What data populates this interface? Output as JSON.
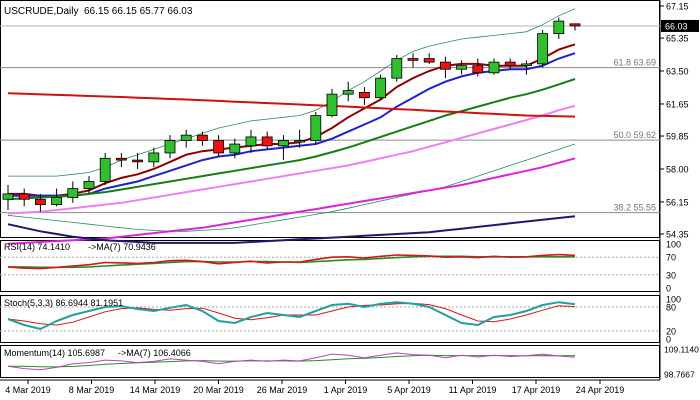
{
  "chart_data": {
    "type": "candlestick",
    "title": "USCRUDE,Daily",
    "ohlc_header": "66.15 66.15 65.77 66.03",
    "last_price": "66.03",
    "price_axis": {
      "ylim": [
        54.35,
        67.15
      ],
      "ticks": [
        "67.15",
        "65.35",
        "63.50",
        "61.65",
        "59.85",
        "58.00",
        "56.15",
        "54.35"
      ]
    },
    "fib_levels": [
      {
        "label": "61.8 63.69",
        "value": 63.69
      },
      {
        "label": "50.0 59.62",
        "value": 59.62
      },
      {
        "label": "38.2 55.55",
        "value": 55.55
      }
    ],
    "resistance_line": 66.03,
    "x_labels": [
      "4 Mar 2019",
      "8 Mar 2019",
      "14 Mar 2019",
      "20 Mar 2019",
      "26 Mar 2019",
      "1 Apr 2019",
      "5 Apr 2019",
      "11 Apr 2019",
      "17 Apr 2019",
      "24 Apr 2019"
    ],
    "candles": [
      [
        56.3,
        57.1,
        55.7,
        56.6
      ],
      [
        56.6,
        56.9,
        55.9,
        56.3
      ],
      [
        56.3,
        56.6,
        55.6,
        56.0
      ],
      [
        56.0,
        56.9,
        55.9,
        56.4
      ],
      [
        56.4,
        57.3,
        56.1,
        56.9
      ],
      [
        56.9,
        57.6,
        56.6,
        57.3
      ],
      [
        57.3,
        58.9,
        57.1,
        58.6
      ],
      [
        58.6,
        58.9,
        58.1,
        58.5
      ],
      [
        58.5,
        58.9,
        58.0,
        58.4
      ],
      [
        58.4,
        59.2,
        58.1,
        58.9
      ],
      [
        58.9,
        59.9,
        58.6,
        59.6
      ],
      [
        59.6,
        60.2,
        59.2,
        59.9
      ],
      [
        59.9,
        60.1,
        59.3,
        59.6
      ],
      [
        59.6,
        59.9,
        58.7,
        58.9
      ],
      [
        58.9,
        59.7,
        58.6,
        59.4
      ],
      [
        59.3,
        60.2,
        58.9,
        59.8
      ],
      [
        59.8,
        60.1,
        59.1,
        59.3
      ],
      [
        59.3,
        59.9,
        58.5,
        59.6
      ],
      [
        59.6,
        60.2,
        59.2,
        59.6
      ],
      [
        59.6,
        61.2,
        59.4,
        61.0
      ],
      [
        61.0,
        62.5,
        60.9,
        62.2
      ],
      [
        62.2,
        62.9,
        61.8,
        62.4
      ],
      [
        62.3,
        62.6,
        61.6,
        62.0
      ],
      [
        62.0,
        63.3,
        61.9,
        63.1
      ],
      [
        63.1,
        64.4,
        62.9,
        64.2
      ],
      [
        64.2,
        64.5,
        63.7,
        64.1
      ],
      [
        64.2,
        64.5,
        63.9,
        64.0
      ],
      [
        64.0,
        64.3,
        63.1,
        63.6
      ],
      [
        63.6,
        64.1,
        63.3,
        63.8
      ],
      [
        63.8,
        64.2,
        63.2,
        63.4
      ],
      [
        63.4,
        64.2,
        63.3,
        64.0
      ],
      [
        64.0,
        64.2,
        63.6,
        63.8
      ],
      [
        63.8,
        64.1,
        63.3,
        63.9
      ],
      [
        63.9,
        65.8,
        63.7,
        65.6
      ],
      [
        65.6,
        66.5,
        65.3,
        66.3
      ],
      [
        66.15,
        66.15,
        65.77,
        66.03
      ]
    ],
    "moving_averages": [
      {
        "color": "#8b0000",
        "values": [
          56.6,
          56.6,
          56.5,
          56.5,
          56.6,
          56.8,
          57.2,
          57.5,
          57.7,
          58.0,
          58.4,
          58.8,
          59.0,
          59.1,
          59.2,
          59.3,
          59.4,
          59.4,
          59.5,
          59.8,
          60.3,
          60.9,
          61.4,
          61.9,
          62.6,
          63.1,
          63.5,
          63.8,
          63.9,
          63.9,
          63.8,
          63.8,
          63.8,
          64.2,
          64.7,
          65.0
        ]
      },
      {
        "color": "#1e22c8",
        "values": [
          56.5,
          56.5,
          56.5,
          56.5,
          56.5,
          56.6,
          56.9,
          57.1,
          57.3,
          57.6,
          57.9,
          58.2,
          58.5,
          58.7,
          58.8,
          59.0,
          59.1,
          59.2,
          59.3,
          59.4,
          59.7,
          60.1,
          60.5,
          60.9,
          61.5,
          62.0,
          62.5,
          62.9,
          63.2,
          63.4,
          63.5,
          63.6,
          63.6,
          63.8,
          64.2,
          64.5
        ]
      },
      {
        "color": "#167d16",
        "values": [
          56.3,
          56.35,
          56.4,
          56.45,
          56.5,
          56.6,
          56.7,
          56.85,
          57.0,
          57.15,
          57.3,
          57.45,
          57.6,
          57.75,
          57.9,
          58.05,
          58.2,
          58.35,
          58.5,
          58.7,
          58.95,
          59.2,
          59.5,
          59.8,
          60.1,
          60.4,
          60.7,
          61.0,
          61.25,
          61.5,
          61.75,
          62.0,
          62.2,
          62.45,
          62.75,
          63.05
        ]
      },
      {
        "color": "#ee80ee",
        "values": [
          55.5,
          55.55,
          55.6,
          55.7,
          55.8,
          55.9,
          56.0,
          56.1,
          56.25,
          56.4,
          56.55,
          56.7,
          56.85,
          57.0,
          57.15,
          57.3,
          57.45,
          57.6,
          57.75,
          57.9,
          58.05,
          58.2,
          58.4,
          58.6,
          58.8,
          59.0,
          59.25,
          59.5,
          59.75,
          60.0,
          60.25,
          60.5,
          60.75,
          61.0,
          61.3,
          61.55
        ]
      },
      {
        "color": "#dd22dd",
        "values": [
          53.8,
          53.85,
          53.9,
          53.95,
          54.0,
          54.05,
          54.1,
          54.2,
          54.3,
          54.4,
          54.5,
          54.6,
          54.7,
          54.85,
          55.0,
          55.15,
          55.3,
          55.45,
          55.6,
          55.75,
          55.9,
          56.05,
          56.2,
          56.35,
          56.5,
          56.65,
          56.8,
          56.95,
          57.1,
          57.3,
          57.5,
          57.7,
          57.9,
          58.1,
          58.35,
          58.6
        ]
      },
      {
        "color": "#1a1a6e",
        "values": [
          54.9,
          54.7,
          54.5,
          54.35,
          54.2,
          54.1,
          54.0,
          53.95,
          53.9,
          53.85,
          53.85,
          53.85,
          53.85,
          53.85,
          53.85,
          53.9,
          53.95,
          54.0,
          54.05,
          54.1,
          54.15,
          54.2,
          54.25,
          54.3,
          54.35,
          54.4,
          54.45,
          54.55,
          54.65,
          54.75,
          54.85,
          54.95,
          55.05,
          55.15,
          55.25,
          55.35
        ]
      },
      {
        "color": "#cc1111",
        "values": [
          62.25,
          62.22,
          62.19,
          62.16,
          62.13,
          62.1,
          62.07,
          62.04,
          62.0,
          61.97,
          61.93,
          61.9,
          61.86,
          61.82,
          61.78,
          61.74,
          61.7,
          61.66,
          61.62,
          61.58,
          61.54,
          61.5,
          61.45,
          61.41,
          61.36,
          61.32,
          61.27,
          61.23,
          61.18,
          61.14,
          61.09,
          61.05,
          61.0,
          60.98,
          60.96,
          60.94
        ]
      }
    ],
    "bollinger": {
      "color": "#2e8b57",
      "upper": [
        57.6,
        57.6,
        57.6,
        57.6,
        57.7,
        57.8,
        58.1,
        58.5,
        58.8,
        59.1,
        59.4,
        59.7,
        60.0,
        60.3,
        60.5,
        60.7,
        60.8,
        60.9,
        61.0,
        61.3,
        61.8,
        62.4,
        62.9,
        63.5,
        64.1,
        64.6,
        64.9,
        65.1,
        65.3,
        65.4,
        65.5,
        65.6,
        65.7,
        66.1,
        66.6,
        67.0
      ],
      "lower": [
        55.4,
        55.3,
        55.2,
        55.1,
        55.0,
        54.9,
        54.8,
        54.7,
        54.6,
        54.55,
        54.5,
        54.5,
        54.55,
        54.6,
        54.7,
        54.85,
        55.0,
        55.15,
        55.3,
        55.45,
        55.6,
        55.8,
        56.0,
        56.2,
        56.4,
        56.6,
        56.8,
        57.0,
        57.3,
        57.6,
        57.9,
        58.2,
        58.5,
        58.8,
        59.1,
        59.4
      ]
    },
    "rsi": {
      "label": "RSI(14) 74.1410",
      "ma_label": "->MA(7) 70.9436",
      "scale_labels": [
        "100",
        "70",
        "30",
        "0"
      ],
      "levels": [
        30,
        70
      ],
      "values": [
        48,
        45,
        44,
        47,
        50,
        53,
        58,
        57,
        56,
        58,
        62,
        63,
        60,
        55,
        58,
        61,
        57,
        59,
        59,
        65,
        70,
        71,
        68,
        72,
        75,
        74,
        73,
        70,
        71,
        69,
        72,
        70,
        71,
        74,
        76,
        74
      ],
      "ma": [
        48,
        48,
        47,
        47,
        47,
        48,
        50,
        52,
        54,
        56,
        58,
        60,
        60,
        59,
        59,
        60,
        60,
        59,
        58,
        60,
        62,
        64,
        65,
        67,
        69,
        71,
        72,
        72,
        72,
        71,
        71,
        71,
        71,
        71,
        71,
        71
      ]
    },
    "stoch": {
      "label": "Stoch(5,3,3) 86.6944 81.1951",
      "scale_labels": [
        "100",
        "80",
        "20",
        "0"
      ],
      "levels": [
        20,
        80
      ],
      "k": [
        50,
        35,
        25,
        45,
        60,
        70,
        80,
        82,
        75,
        70,
        78,
        85,
        70,
        45,
        40,
        55,
        65,
        60,
        55,
        70,
        85,
        88,
        80,
        88,
        92,
        88,
        80,
        60,
        40,
        35,
        55,
        60,
        70,
        85,
        92,
        87
      ],
      "d": [
        50,
        45,
        38,
        35,
        42,
        55,
        68,
        76,
        78,
        74,
        72,
        76,
        77,
        65,
        52,
        48,
        53,
        60,
        60,
        60,
        70,
        80,
        84,
        85,
        88,
        89,
        86,
        76,
        60,
        45,
        43,
        50,
        60,
        72,
        83,
        81
      ]
    },
    "momentum": {
      "label": "Momentum(14) 105.6987",
      "ma_label": "->MA(7) 106.4066",
      "scale_labels": [
        "109.1140",
        "98.7667"
      ],
      "ylim": [
        98.7667,
        109.114
      ],
      "values": [
        102,
        101,
        100.5,
        101.5,
        103,
        103.5,
        104.5,
        104.2,
        103.5,
        104,
        105,
        104.5,
        104,
        103,
        104,
        104.5,
        104,
        104.5,
        104.2,
        105.5,
        107,
        106.5,
        105.5,
        106.5,
        107.5,
        106.8,
        106.5,
        105.5,
        106.5,
        105.8,
        106.5,
        106,
        106.3,
        107,
        106.2,
        105.7
      ],
      "ma": [
        102,
        102,
        101.8,
        101.7,
        101.9,
        102.3,
        102.8,
        103.1,
        103.4,
        103.6,
        103.9,
        104.2,
        104.3,
        104.1,
        104.1,
        104.2,
        104.2,
        104.2,
        104.1,
        104.3,
        104.7,
        105.1,
        105.3,
        105.6,
        106.0,
        106.3,
        106.5,
        106.4,
        106.4,
        106.4,
        106.4,
        106.4,
        106.3,
        106.4,
        106.3,
        106.4
      ]
    }
  }
}
